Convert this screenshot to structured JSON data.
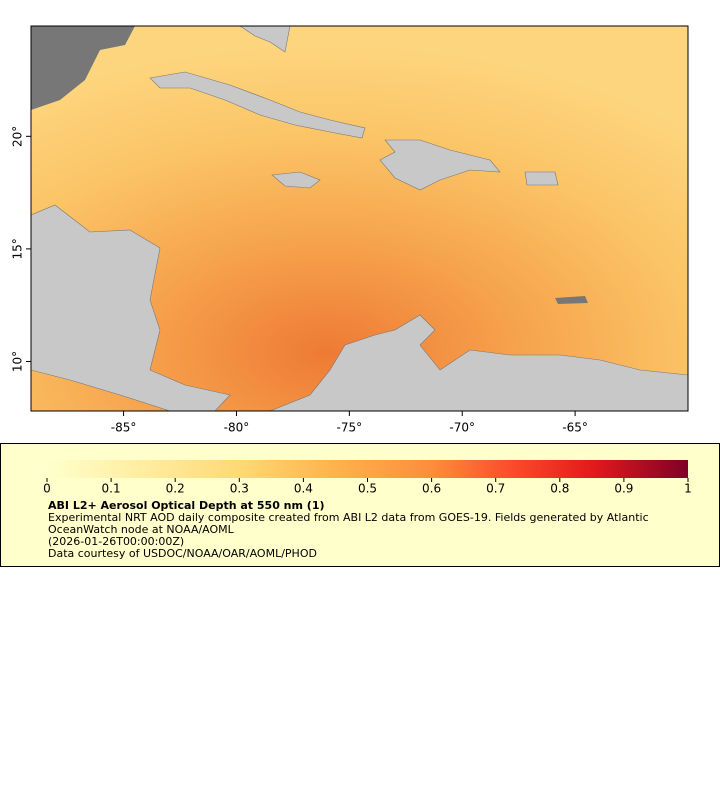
{
  "map": {
    "xlim": [
      -89.1,
      -60
    ],
    "ylim": [
      7.8,
      24.9
    ],
    "lon_ticks": [
      {
        "value": -85,
        "label": "-85°"
      },
      {
        "value": -80,
        "label": "-80°"
      },
      {
        "value": -75,
        "label": "-75°"
      },
      {
        "value": -70,
        "label": "-70°"
      },
      {
        "value": -65,
        "label": "-65°"
      }
    ],
    "lat_ticks": [
      {
        "value": 10,
        "label": "10°"
      },
      {
        "value": 15,
        "label": "15°"
      },
      {
        "value": 20,
        "label": "20°"
      }
    ]
  },
  "colorbar": {
    "range": [
      0,
      1
    ],
    "ticks": [
      0,
      0.1,
      0.2,
      0.3,
      0.4,
      0.5,
      0.6,
      0.7,
      0.8,
      0.9,
      1
    ],
    "title": "ABI L2+ Aerosol Optical Depth at 550 nm (1)",
    "description": "Experimental NRT AOD daily composite created from ABI L2 data from GOES-19. Fields generated by Atlantic OceanWatch node at NOAA/AOML",
    "time": "(2026-01-26T00:00:00Z)",
    "credit": "Data courtesy of USDOC/NOAA/OAR/AOML/PHOD"
  }
}
